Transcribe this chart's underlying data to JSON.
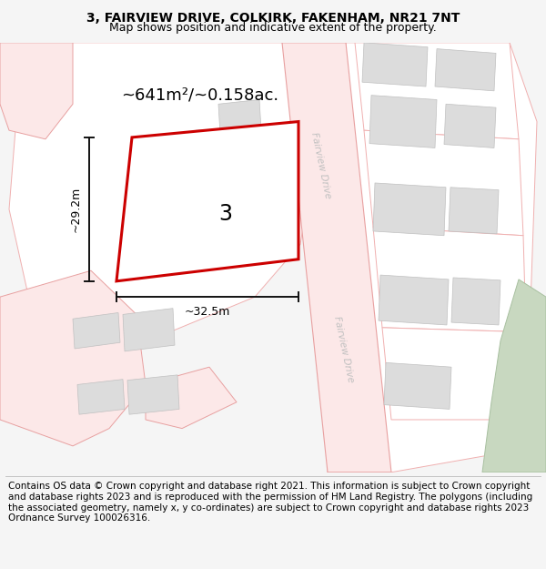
{
  "title": "3, FAIRVIEW DRIVE, COLKIRK, FAKENHAM, NR21 7NT",
  "subtitle": "Map shows position and indicative extent of the property.",
  "footer": "Contains OS data © Crown copyright and database right 2021. This information is subject to Crown copyright and database rights 2023 and is reproduced with the permission of HM Land Registry. The polygons (including the associated geometry, namely x, y co-ordinates) are subject to Crown copyright and database rights 2023 Ordnance Survey 100026316.",
  "area_label": "~641m²/~0.158ac.",
  "width_label": "~32.5m",
  "height_label": "~29.2m",
  "plot_number": "3",
  "bg_color": "#f5f5f5",
  "map_bg": "#ffffff",
  "road_fill": "#fce8e8",
  "road_edge": "#e8a0a0",
  "plot_edge_color": "#f0b0b0",
  "building_fill": "#dcdcdc",
  "building_edge": "#c0c0c0",
  "highlight_fill": "#ffffff",
  "highlight_edge": "#cc0000",
  "green_fill": "#c8d8c0",
  "green_edge": "#a8c0a0",
  "title_fontsize": 10,
  "subtitle_fontsize": 9,
  "footer_fontsize": 7.5,
  "road_label_color": "#c0c0c0",
  "dim_line_color": "#111111"
}
